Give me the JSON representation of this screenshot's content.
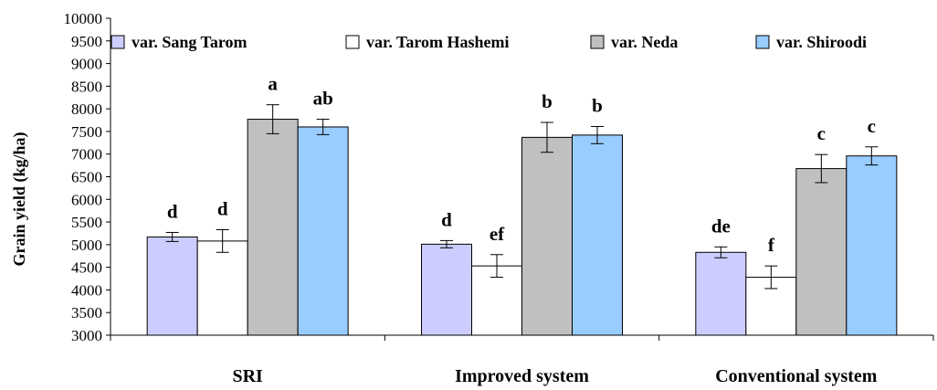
{
  "chart_data": {
    "type": "bar",
    "title": "",
    "xlabel": "",
    "ylabel": "Grain yield (kg/ha)",
    "ylim": [
      3000,
      10000
    ],
    "y_ticks": [
      3000,
      3500,
      4000,
      4500,
      5000,
      5500,
      6000,
      6500,
      7000,
      7500,
      8000,
      8500,
      9000,
      9500,
      10000
    ],
    "categories": [
      "SRI",
      "Improved system",
      "Conventional system"
    ],
    "grid": false,
    "legend_position": "top",
    "series": [
      {
        "name": "var. Sang Tarom",
        "color": "#ccccff",
        "values": [
          5170,
          5010,
          4830
        ],
        "errors": [
          100,
          80,
          120
        ],
        "labels": [
          "d",
          "d",
          "de"
        ]
      },
      {
        "name": "var. Tarom Hashemi",
        "color": "#ffffff",
        "values": [
          5080,
          4530,
          4280
        ],
        "errors": [
          250,
          250,
          250
        ],
        "labels": [
          "d",
          "ef",
          "f"
        ]
      },
      {
        "name": "var. Neda",
        "color": "#c0c0c0",
        "values": [
          7770,
          7370,
          6680
        ],
        "errors": [
          320,
          330,
          310
        ],
        "labels": [
          "a",
          "b",
          "c"
        ]
      },
      {
        "name": "var. Shiroodi",
        "color": "#99ccff",
        "values": [
          7600,
          7420,
          6960
        ],
        "errors": [
          170,
          190,
          200
        ],
        "labels": [
          "ab",
          "b",
          "c"
        ]
      }
    ]
  }
}
